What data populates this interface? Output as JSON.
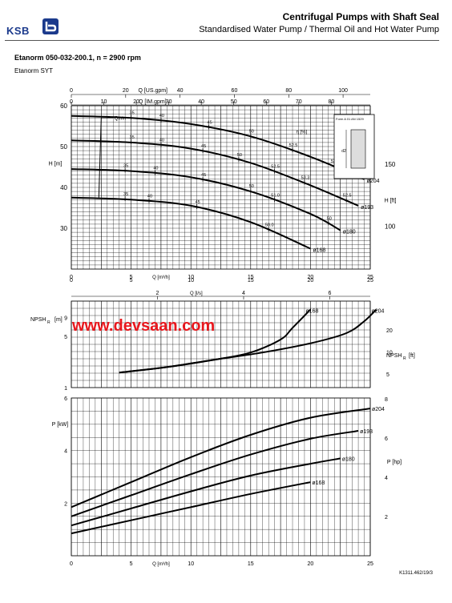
{
  "header": {
    "brand": "KSB",
    "title": "Centrifugal Pumps with Shaft Seal",
    "subtitle": "Standardised Water Pump / Thermal Oil and Hot Water Pump"
  },
  "model": {
    "line": "Etanorm 050-032-200.1, n = 2900 rpm",
    "series": "Etanorm SYT"
  },
  "watermark": "www.devsaan.com",
  "footer_ref": "K1311.462/19/3",
  "inset": {
    "label": "Form A 01 AN 1529",
    "d2_label": "d2"
  },
  "colors": {
    "brand": "#1b3a8c",
    "watermark": "#e8171d",
    "curve": "#000000",
    "grid": "#000000"
  },
  "chart_data": [
    {
      "type": "line",
      "name": "head-curves",
      "x_axis_bottom": {
        "label": "Q [m³/h]",
        "range": [
          0,
          25
        ],
        "ticks": [
          0,
          5,
          10,
          15,
          20,
          25
        ]
      },
      "x_axis_top_1": {
        "label": "Q [US.gpm]",
        "range": [
          0,
          110
        ],
        "ticks": [
          0,
          20,
          40,
          60,
          80,
          100
        ]
      },
      "x_axis_top_2": {
        "label": "Q [IM.gpm]",
        "range": [
          0,
          92
        ],
        "ticks": [
          0,
          10,
          20,
          30,
          40,
          50,
          60,
          70,
          80
        ]
      },
      "y_axis_left": {
        "label": "H [m]",
        "range": [
          20,
          60
        ],
        "ticks": [
          30,
          40,
          50,
          60
        ]
      },
      "y_axis_right": {
        "label": "H [ft]",
        "range": [
          66,
          197
        ],
        "ticks": [
          100,
          150
        ]
      },
      "qmin_label": "Qmin",
      "eta_label": "η [%]",
      "series": [
        {
          "name": "ø204",
          "x": [
            0,
            5,
            10,
            15,
            20,
            24.5
          ],
          "y": [
            57.5,
            57,
            55.5,
            52.5,
            47.5,
            42
          ]
        },
        {
          "name": "ø193",
          "x": [
            0,
            5,
            10,
            15,
            20,
            24
          ],
          "y": [
            51.5,
            51,
            49.5,
            46,
            40.5,
            35.5
          ]
        },
        {
          "name": "ø180",
          "x": [
            0,
            5,
            10,
            15,
            20,
            22.5
          ],
          "y": [
            44.5,
            44,
            42.5,
            39,
            33.5,
            29.5
          ]
        },
        {
          "name": "ø168",
          "x": [
            0,
            5,
            10,
            15,
            20
          ],
          "y": [
            37.5,
            37,
            35.5,
            31.5,
            25
          ]
        }
      ],
      "efficiency_marks": [
        {
          "curve": "ø204",
          "labels": [
            {
              "x": 5,
              "text": "35"
            },
            {
              "x": 7.5,
              "text": "40"
            },
            {
              "x": 11.5,
              "text": "45"
            },
            {
              "x": 15,
              "text": "50"
            },
            {
              "x": 18.5,
              "text": "52.5"
            },
            {
              "x": 22,
              "text": "53.2"
            },
            {
              "x": 23.8,
              "text": "52.5"
            }
          ]
        },
        {
          "curve": "ø193",
          "labels": [
            {
              "x": 5,
              "text": "35"
            },
            {
              "x": 7.5,
              "text": "40"
            },
            {
              "x": 11,
              "text": "45"
            },
            {
              "x": 14,
              "text": "50"
            },
            {
              "x": 17,
              "text": "52.5"
            },
            {
              "x": 19.5,
              "text": "53.3"
            },
            {
              "x": 23,
              "text": "52.5"
            }
          ]
        },
        {
          "curve": "ø180",
          "labels": [
            {
              "x": 4.5,
              "text": "35"
            },
            {
              "x": 7,
              "text": "40"
            },
            {
              "x": 11,
              "text": "45"
            },
            {
              "x": 15,
              "text": "50"
            },
            {
              "x": 17,
              "text": "51.0"
            },
            {
              "x": 21.5,
              "text": "50"
            }
          ]
        },
        {
          "curve": "ø168",
          "labels": [
            {
              "x": 4.5,
              "text": "35"
            },
            {
              "x": 6.5,
              "text": "40"
            },
            {
              "x": 10.5,
              "text": "45"
            },
            {
              "x": 16.5,
              "text": "50.0"
            }
          ]
        }
      ]
    },
    {
      "type": "line",
      "name": "npsh-curves",
      "x_axis_top_m3h": {
        "range": [
          0,
          25
        ],
        "ticks": [
          0,
          5,
          10,
          15,
          20,
          25
        ]
      },
      "x_axis_top_ls": {
        "label": "Q [l/s]",
        "range": [
          0,
          6.94
        ],
        "ticks": [
          2,
          4,
          6
        ]
      },
      "y_axis_left": {
        "label": "NPSH",
        "sub": "R",
        "unit": "[m]",
        "ticks": [
          1,
          5,
          9
        ]
      },
      "y_axis_right": {
        "label": "NPSH",
        "sub": "R",
        "unit": "[ft]",
        "ticks": [
          5,
          10,
          20
        ]
      },
      "series": [
        {
          "name": "ø168",
          "x": [
            4,
            8,
            12,
            15,
            17.5,
            18.5,
            20
          ],
          "y": [
            1.6,
            1.9,
            2.4,
            3.0,
            4.5,
            6.5,
            11.5
          ]
        },
        {
          "name": "ø204",
          "x": [
            4,
            8,
            12,
            16,
            20,
            23,
            24.5,
            25.5
          ],
          "y": [
            1.6,
            1.9,
            2.4,
            3.0,
            4.0,
            5.5,
            8.0,
            11.5
          ]
        }
      ]
    },
    {
      "type": "line",
      "name": "power-curves",
      "x_axis_bottom": {
        "label": "Q [m³/h]",
        "range": [
          0,
          25
        ],
        "ticks": [
          0,
          5,
          10,
          15,
          20,
          25
        ]
      },
      "y_axis_left": {
        "label": "P [kW]",
        "ticks": [
          2,
          4,
          6
        ]
      },
      "y_axis_right": {
        "label": "P [hp]",
        "ticks": [
          2,
          4,
          6,
          8
        ]
      },
      "series": [
        {
          "name": "ø204",
          "x": [
            0,
            5,
            10,
            15,
            20,
            25
          ],
          "y": [
            1.85,
            2.8,
            3.75,
            4.6,
            5.25,
            5.6
          ]
        },
        {
          "name": "ø193",
          "x": [
            0,
            5,
            10,
            15,
            20,
            24
          ],
          "y": [
            1.5,
            2.3,
            3.1,
            3.85,
            4.45,
            4.75
          ]
        },
        {
          "name": "ø180",
          "x": [
            0,
            5,
            10,
            15,
            20,
            22.5
          ],
          "y": [
            1.15,
            1.8,
            2.45,
            3.05,
            3.5,
            3.7
          ]
        },
        {
          "name": "ø168",
          "x": [
            0,
            5,
            10,
            15,
            20
          ],
          "y": [
            0.85,
            1.35,
            1.85,
            2.35,
            2.8
          ]
        }
      ]
    }
  ]
}
